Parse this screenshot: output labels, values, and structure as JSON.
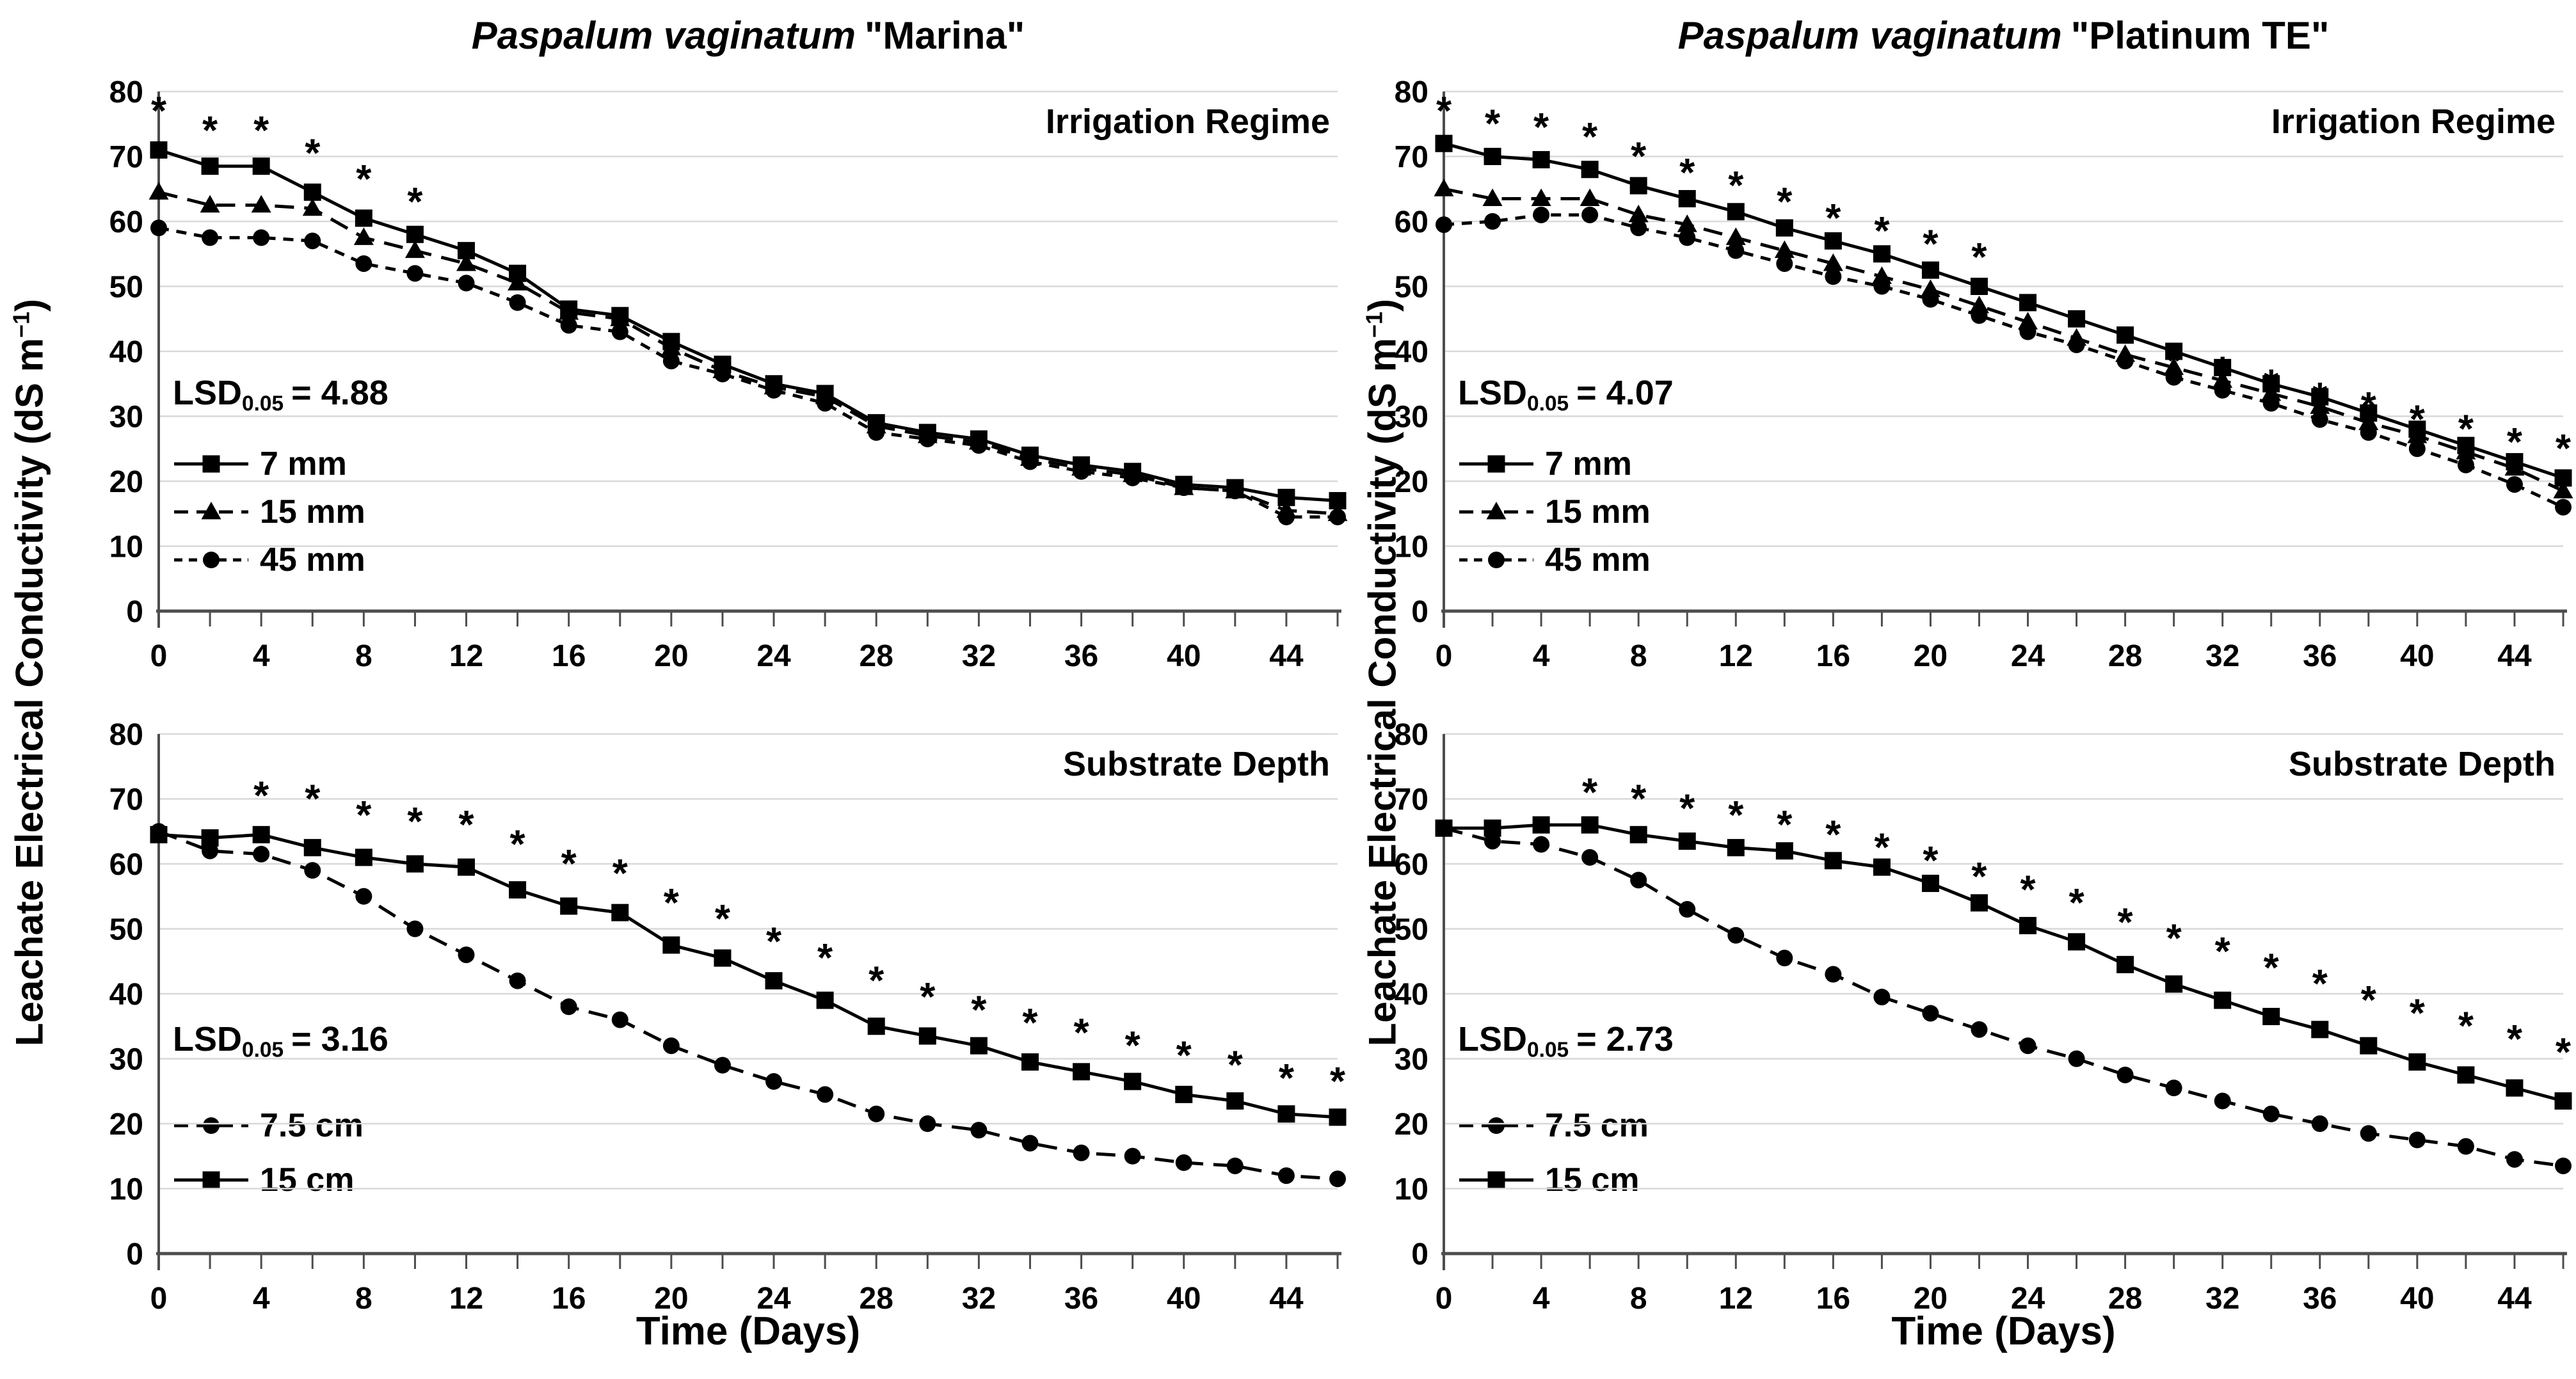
{
  "figure": {
    "xlabel": "Time (Days)",
    "ylabel_main": "Leachate Electrical Conductivity (dS m",
    "ylabel_sup": "−1",
    "ylabel_close": ")",
    "significance_symbol": "*",
    "colors": {
      "series": "#000000",
      "grid": "#d9d9d9",
      "axis": "#4d4d4d",
      "text": "#000000",
      "background": "#ffffff"
    }
  },
  "chart_data": [
    {
      "id": "marina-irrigation",
      "type": "line",
      "title_italic": "Paspalum vaginatum",
      "title_suffix": "\"Marina\"",
      "panel_label": "Irrigation Regime",
      "lsd": {
        "prefix": "LSD",
        "sub": "0.05",
        "value": "= 4.88"
      },
      "xlim": [
        0,
        46
      ],
      "ylim": [
        0,
        80
      ],
      "x": [
        0,
        2,
        4,
        6,
        8,
        10,
        12,
        14,
        16,
        18,
        20,
        22,
        24,
        26,
        28,
        30,
        32,
        34,
        36,
        38,
        40,
        42,
        44,
        46
      ],
      "xtick_labels": [
        0,
        4,
        8,
        12,
        16,
        20,
        24,
        28,
        32,
        36,
        40,
        44
      ],
      "yticks": [
        0,
        10,
        20,
        30,
        40,
        50,
        60,
        70,
        80
      ],
      "series": [
        {
          "name": "7 mm",
          "marker": "square",
          "dash": "solid",
          "values": [
            71,
            68.5,
            68.5,
            64.5,
            60.5,
            58,
            55.5,
            52,
            46.5,
            45.5,
            41.5,
            38,
            35,
            33.5,
            29,
            27.5,
            26.5,
            24,
            22.5,
            21.5,
            19.5,
            19,
            17.5,
            17
          ]
        },
        {
          "name": "15 mm",
          "marker": "triangle",
          "dash": "dash",
          "values": [
            64.5,
            62.5,
            62.5,
            62,
            57.5,
            55.5,
            53.5,
            50.5,
            46,
            45,
            40.5,
            37,
            34.5,
            33,
            28.5,
            27,
            26,
            23.5,
            22,
            21,
            19,
            18.5,
            15.5,
            15
          ]
        },
        {
          "name": "45 mm",
          "marker": "circle",
          "dash": "dash-short",
          "values": [
            59,
            57.5,
            57.5,
            57,
            53.5,
            52,
            50.5,
            47.5,
            44,
            43,
            38.5,
            36.5,
            34,
            32,
            27.5,
            26.5,
            25.5,
            23,
            21.5,
            20.5,
            19,
            18.5,
            14.5,
            14.5
          ]
        }
      ],
      "asterisks": {
        "days": [
          0,
          2,
          4,
          6,
          8,
          10
        ],
        "values": [
          77.5,
          74.5,
          74.5,
          71,
          67,
          63.5
        ]
      }
    },
    {
      "id": "platinum-irrigation",
      "type": "line",
      "title_italic": "Paspalum vaginatum",
      "title_suffix": "\"Platinum TE\"",
      "panel_label": "Irrigation Regime",
      "lsd": {
        "prefix": "LSD",
        "sub": "0.05",
        "value": "= 4.07"
      },
      "xlim": [
        0,
        46
      ],
      "ylim": [
        0,
        80
      ],
      "x": [
        0,
        2,
        4,
        6,
        8,
        10,
        12,
        14,
        16,
        18,
        20,
        22,
        24,
        26,
        28,
        30,
        32,
        34,
        36,
        38,
        40,
        42,
        44,
        46
      ],
      "xtick_labels": [
        0,
        4,
        8,
        12,
        16,
        20,
        24,
        28,
        32,
        36,
        40,
        44
      ],
      "yticks": [
        0,
        10,
        20,
        30,
        40,
        50,
        60,
        70,
        80
      ],
      "series": [
        {
          "name": "7 mm",
          "marker": "square",
          "dash": "solid",
          "values": [
            72,
            70,
            69.5,
            68,
            65.5,
            63.5,
            61.5,
            59,
            57,
            55,
            52.5,
            50,
            47.5,
            45,
            42.5,
            40,
            37.5,
            35,
            33,
            30.5,
            28,
            25.5,
            23,
            20.5
          ]
        },
        {
          "name": "15 mm",
          "marker": "triangle",
          "dash": "dash",
          "values": [
            65,
            63.5,
            63.5,
            63.5,
            61,
            59.5,
            57.5,
            55.5,
            53.5,
            51.5,
            49.5,
            47,
            44.5,
            42,
            39.5,
            37.5,
            35.5,
            33.5,
            31.5,
            29,
            27,
            24.5,
            22,
            18.5
          ]
        },
        {
          "name": "45 mm",
          "marker": "circle",
          "dash": "dash-short",
          "values": [
            59.5,
            60,
            61,
            61,
            59,
            57.5,
            55.5,
            53.5,
            51.5,
            50,
            48,
            45.5,
            43,
            41,
            38.5,
            36,
            34,
            32,
            29.5,
            27.5,
            25,
            22.5,
            19.5,
            16
          ]
        }
      ],
      "asterisks": {
        "days": [
          0,
          2,
          4,
          6,
          8,
          10,
          12,
          14,
          16,
          18,
          20,
          22,
          30,
          32,
          34,
          36,
          38,
          40,
          42,
          44,
          46
        ],
        "values": [
          77.5,
          75.5,
          75,
          73.5,
          70.5,
          68,
          66,
          63.5,
          61,
          59,
          57,
          55,
          39,
          37.5,
          35.5,
          33.5,
          32,
          30,
          28.5,
          26.5,
          25.5
        ]
      }
    },
    {
      "id": "marina-substrate",
      "type": "line",
      "title_italic": "",
      "title_suffix": "",
      "panel_label": "Substrate Depth",
      "lsd": {
        "prefix": "LSD",
        "sub": "0.05",
        "value": "= 3.16"
      },
      "xlim": [
        0,
        46
      ],
      "ylim": [
        0,
        80
      ],
      "x": [
        0,
        2,
        4,
        6,
        8,
        10,
        12,
        14,
        16,
        18,
        20,
        22,
        24,
        26,
        28,
        30,
        32,
        34,
        36,
        38,
        40,
        42,
        44,
        46
      ],
      "xtick_labels": [
        0,
        4,
        8,
        12,
        16,
        20,
        24,
        28,
        32,
        36,
        40,
        44
      ],
      "yticks": [
        0,
        10,
        20,
        30,
        40,
        50,
        60,
        70,
        80
      ],
      "series": [
        {
          "name": "7.5 cm",
          "marker": "circle",
          "dash": "dash",
          "values": [
            65,
            62,
            61.5,
            59,
            55,
            50,
            46,
            42,
            38,
            36,
            32,
            29,
            26.5,
            24.5,
            21.5,
            20,
            19,
            17,
            15.5,
            15,
            14,
            13.5,
            12,
            11.5
          ]
        },
        {
          "name": "15 cm",
          "marker": "square",
          "dash": "solid",
          "values": [
            64.5,
            64,
            64.5,
            62.5,
            61,
            60,
            59.5,
            56,
            53.5,
            52.5,
            47.5,
            45.5,
            42,
            39,
            35,
            33.5,
            32,
            29.5,
            28,
            26.5,
            24.5,
            23.5,
            21.5,
            21
          ]
        }
      ],
      "asterisks": {
        "days": [
          4,
          6,
          8,
          10,
          12,
          14,
          16,
          18,
          20,
          22,
          24,
          26,
          28,
          30,
          32,
          34,
          36,
          38,
          40,
          42,
          44,
          46
        ],
        "values": [
          71,
          70.5,
          68,
          67,
          66.5,
          63.5,
          60.5,
          59,
          54.5,
          52,
          48.5,
          46,
          42.5,
          40,
          38,
          36,
          34.5,
          32.5,
          31,
          29.5,
          27.5,
          27
        ]
      }
    },
    {
      "id": "platinum-substrate",
      "type": "line",
      "title_italic": "",
      "title_suffix": "",
      "panel_label": "Substrate Depth",
      "lsd": {
        "prefix": "LSD",
        "sub": "0.05",
        "value": "= 2.73"
      },
      "xlim": [
        0,
        46
      ],
      "ylim": [
        0,
        80
      ],
      "x": [
        0,
        2,
        4,
        6,
        8,
        10,
        12,
        14,
        16,
        18,
        20,
        22,
        24,
        26,
        28,
        30,
        32,
        34,
        36,
        38,
        40,
        42,
        44,
        46
      ],
      "xtick_labels": [
        0,
        4,
        8,
        12,
        16,
        20,
        24,
        28,
        32,
        36,
        40,
        44
      ],
      "yticks": [
        0,
        10,
        20,
        30,
        40,
        50,
        60,
        70,
        80
      ],
      "series": [
        {
          "name": "7.5 cm",
          "marker": "circle",
          "dash": "dash",
          "values": [
            65.5,
            63.5,
            63,
            61,
            57.5,
            53,
            49,
            45.5,
            43,
            39.5,
            37,
            34.5,
            32,
            30,
            27.5,
            25.5,
            23.5,
            21.5,
            20,
            18.5,
            17.5,
            16.5,
            14.5,
            13.5
          ]
        },
        {
          "name": "15 cm",
          "marker": "square",
          "dash": "solid",
          "values": [
            65.5,
            65.5,
            66,
            66,
            64.5,
            63.5,
            62.5,
            62,
            60.5,
            59.5,
            57,
            54,
            50.5,
            48,
            44.5,
            41.5,
            39,
            36.5,
            34.5,
            32,
            29.5,
            27.5,
            25.5,
            23.5
          ]
        }
      ],
      "asterisks": {
        "days": [
          6,
          8,
          10,
          12,
          14,
          16,
          18,
          20,
          22,
          24,
          26,
          28,
          30,
          32,
          34,
          36,
          38,
          40,
          42,
          44,
          46
        ],
        "values": [
          71.5,
          70.5,
          69,
          68,
          66.5,
          65,
          63,
          61,
          58.5,
          56.5,
          54.5,
          51.5,
          49,
          47,
          44.5,
          42,
          39.5,
          37.5,
          35.5,
          33.5,
          31.5
        ]
      }
    }
  ]
}
